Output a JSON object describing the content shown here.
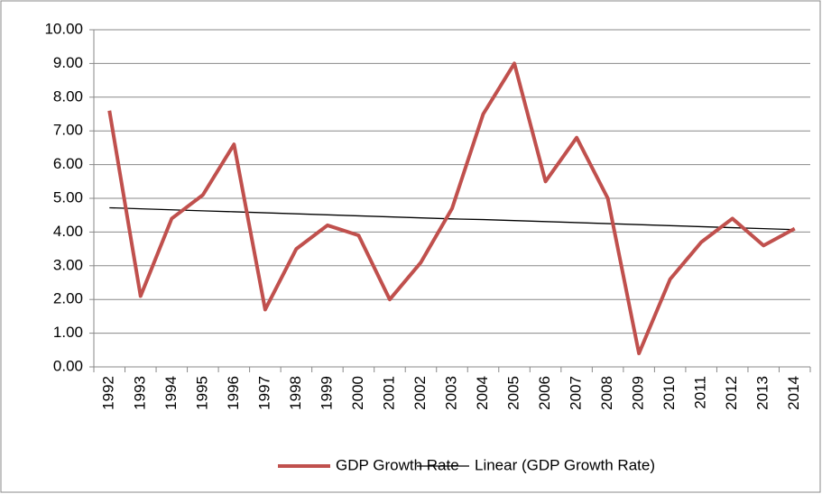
{
  "chart_data": {
    "type": "line",
    "categories": [
      "1992",
      "1993",
      "1994",
      "1995",
      "1996",
      "1997",
      "1998",
      "1999",
      "2000",
      "2001",
      "2002",
      "2003",
      "2004",
      "2005",
      "2006",
      "2007",
      "2008",
      "2009",
      "2010",
      "2011",
      "2012",
      "2013",
      "2014"
    ],
    "series": [
      {
        "name": "GDP Growth Rate",
        "color": "#c0504d",
        "width": 4,
        "values": [
          7.6,
          2.1,
          4.4,
          5.1,
          6.6,
          1.7,
          3.5,
          4.2,
          3.9,
          2.0,
          3.1,
          4.7,
          7.5,
          9.0,
          5.5,
          6.8,
          5.0,
          0.4,
          2.6,
          3.7,
          4.4,
          3.6,
          4.1
        ]
      },
      {
        "name": "Linear (GDP Growth Rate)",
        "color": "#000000",
        "width": 1.3,
        "values": [
          4.72,
          4.69,
          4.66,
          4.63,
          4.6,
          4.57,
          4.54,
          4.51,
          4.48,
          4.45,
          4.42,
          4.39,
          4.37,
          4.34,
          4.31,
          4.28,
          4.25,
          4.22,
          4.19,
          4.16,
          4.13,
          4.1,
          4.07
        ]
      }
    ],
    "ylim": [
      0,
      10
    ],
    "yticks": [
      {
        "value": 0,
        "label": "0.00"
      },
      {
        "value": 1,
        "label": "1.00"
      },
      {
        "value": 2,
        "label": "2.00"
      },
      {
        "value": 3,
        "label": "3.00"
      },
      {
        "value": 4,
        "label": "4.00"
      },
      {
        "value": 5,
        "label": "5.00"
      },
      {
        "value": 6,
        "label": "6.00"
      },
      {
        "value": 7,
        "label": "7.00"
      },
      {
        "value": 8,
        "label": "8.00"
      },
      {
        "value": 9,
        "label": "9.00"
      },
      {
        "value": 10,
        "label": "10.00"
      }
    ],
    "grid": true,
    "legend": "bottom"
  }
}
